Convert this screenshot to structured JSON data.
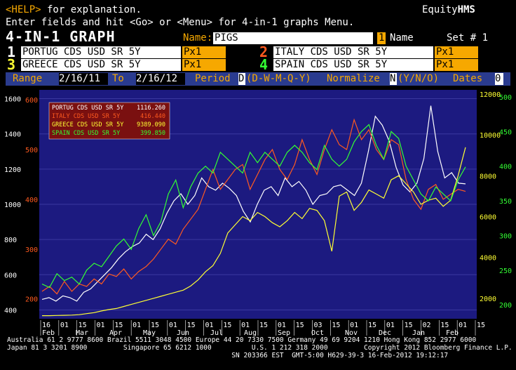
{
  "header": {
    "help_key": "<HELP>",
    "help_text": " for explanation.",
    "brand_prefix": "Equity",
    "brand_suffix": "HMS",
    "line2": "Enter fields and hit <Go> or <Menu> for 4-in-1 graphs Menu.",
    "screen_title": "4-IN-1 GRAPH",
    "name_label": "Name:",
    "name_value": "PIGS",
    "one_box": "1",
    "one_label": "Name",
    "set_label": "Set # 1"
  },
  "securities": [
    {
      "num": "1",
      "name": "PORTUG CDS USD SR 5Y",
      "field": "Px1"
    },
    {
      "num": "2",
      "name": "ITALY CDS USD SR 5Y",
      "field": "Px1"
    },
    {
      "num": "3",
      "name": "GREECE CDS USD SR 5Y",
      "field": "Px1"
    },
    {
      "num": "4",
      "name": "SPAIN CDS USD SR 5Y",
      "field": "Px1"
    }
  ],
  "range_bar": {
    "range_label": "Range",
    "from": "2/16/11",
    "to_label": "To",
    "to": "2/16/12",
    "period_label": "Period",
    "period_value": "D",
    "period_options": "(D-W-M-Q-Y)",
    "normalize_label": "Normalize",
    "normalize_value": "N",
    "normalize_options": "(Y/N/O)",
    "dates_label": "Dates",
    "dates_value": "0"
  },
  "legend": [
    {
      "name": "PORTUG CDS USD SR 5Y",
      "value": "1116.260",
      "color": "#ffffff"
    },
    {
      "name": "ITALY CDS USD SR 5Y",
      "value": "416.440",
      "color": "#ff5a1f"
    },
    {
      "name": "GREECE CDS USD SR 5Y",
      "value": "9389.090",
      "color": "#ffff33"
    },
    {
      "name": "SPAIN CDS USD SR 5Y",
      "value": "399.850",
      "color": "#33ff33"
    }
  ],
  "colors": {
    "portugal": "#ffffff",
    "italy": "#ff5a1f",
    "greece": "#ffff33",
    "spain": "#33ff33",
    "plot_bg": "#1c1a80",
    "amber": "#f6a800",
    "range_bar": "#2a3b8f"
  },
  "chart_data": {
    "type": "line",
    "x_day_ticks": [
      "16",
      "01",
      "15",
      "01",
      "15",
      "01",
      "15",
      "01",
      "15",
      "01",
      "15",
      "01",
      "15",
      "01",
      "15",
      "03",
      "15",
      "01",
      "15",
      "01",
      "15",
      "02",
      "15",
      "01",
      "15"
    ],
    "x_month_labels": [
      "Feb",
      "Mar",
      "Apr",
      "May",
      "Jun",
      "Jul",
      "Aug",
      "Sep",
      "Oct",
      "Nov",
      "Dec",
      "Jan",
      "Feb"
    ],
    "axes": {
      "portugal": {
        "ticks": [
          "400",
          "600",
          "800",
          "1000",
          "1200",
          "1400",
          "1600"
        ],
        "range": [
          350,
          1650
        ],
        "side": "left",
        "color": "#ffffff"
      },
      "italy": {
        "ticks": [
          "200",
          "300",
          "400",
          "500",
          "600"
        ],
        "range": [
          160,
          620
        ],
        "side": "left",
        "color": "#ff5a1f"
      },
      "greece": {
        "ticks": [
          "2000",
          "4000",
          "6000",
          "8000",
          "10000",
          "12000"
        ],
        "range": [
          1000,
          12200
        ],
        "side": "right",
        "color": "#ffff33"
      },
      "spain": {
        "ticks": [
          "200",
          "250",
          "300",
          "350",
          "400",
          "450",
          "500"
        ],
        "range": [
          180,
          510
        ],
        "side": "right",
        "color": "#33ff33"
      }
    },
    "series": [
      {
        "name": "PORTUG CDS USD SR 5Y",
        "axis": "portugal",
        "values": [
          460,
          470,
          450,
          480,
          470,
          450,
          500,
          520,
          560,
          600,
          640,
          690,
          730,
          760,
          780,
          830,
          800,
          860,
          950,
          1020,
          1060,
          1000,
          1050,
          1150,
          1100,
          1080,
          1120,
          1090,
          1050,
          960,
          900,
          1000,
          1080,
          1100,
          1050,
          1150,
          1100,
          1130,
          1080,
          1000,
          1050,
          1060,
          1100,
          1110,
          1080,
          1050,
          1120,
          1300,
          1500,
          1450,
          1360,
          1210,
          1110,
          1070,
          1120,
          1260,
          1560,
          1300,
          1150,
          1180,
          1120,
          1116
        ]
      },
      {
        "name": "ITALY CDS USD SR 5Y",
        "axis": "italy",
        "values": [
          215,
          225,
          210,
          235,
          215,
          230,
          225,
          240,
          230,
          250,
          245,
          260,
          240,
          255,
          265,
          280,
          300,
          320,
          310,
          340,
          360,
          380,
          420,
          460,
          420,
          440,
          460,
          470,
          420,
          450,
          480,
          500,
          460,
          440,
          470,
          520,
          480,
          450,
          500,
          540,
          510,
          500,
          560,
          520,
          540,
          500,
          480,
          520,
          510,
          440,
          400,
          380,
          420,
          430,
          400,
          410,
          420,
          416
        ]
      },
      {
        "name": "GREECE CDS USD SR 5Y",
        "axis": "greece",
        "values": [
          1150,
          1150,
          1160,
          1170,
          1180,
          1200,
          1250,
          1300,
          1380,
          1450,
          1500,
          1600,
          1700,
          1800,
          1900,
          2000,
          2100,
          2200,
          2300,
          2400,
          2600,
          2900,
          3300,
          3600,
          4200,
          5200,
          5600,
          6000,
          5800,
          6200,
          6000,
          5700,
          5500,
          5800,
          6200,
          5900,
          6400,
          6300,
          5800,
          4300,
          7000,
          7200,
          6300,
          6700,
          7300,
          7100,
          6900,
          7800,
          8000,
          7600,
          7200,
          6600,
          6800,
          6900,
          6500,
          6800,
          8000,
          9389
        ]
      },
      {
        "name": "SPAIN CDS USD SR 5Y",
        "axis": "spain",
        "values": [
          230,
          225,
          245,
          235,
          240,
          230,
          250,
          260,
          255,
          270,
          285,
          295,
          280,
          310,
          330,
          300,
          320,
          360,
          380,
          340,
          370,
          390,
          400,
          390,
          420,
          410,
          400,
          390,
          420,
          405,
          420,
          410,
          400,
          420,
          430,
          420,
          405,
          395,
          430,
          410,
          400,
          410,
          435,
          450,
          460,
          430,
          410,
          450,
          440,
          400,
          380,
          360,
          350,
          370,
          360,
          350,
          380,
          399
        ]
      }
    ]
  },
  "footer": {
    "line1": "Australia 61 2 9777 8600 Brazil 5511 3048 4500 Europe 44 20 7330 7500 Germany 49 69 9204 1210 Hong Kong 852 2977 6000",
    "line2": "Japan 81 3 3201 8900         Singapore 65 6212 1000          U.S. 1 212 318 2000         Copyright 2012 Bloomberg Finance L.P.",
    "line3": "                                                        SN 203366 EST  GMT-5:00 H629-39-3 16-Feb-2012 19:12:17"
  }
}
